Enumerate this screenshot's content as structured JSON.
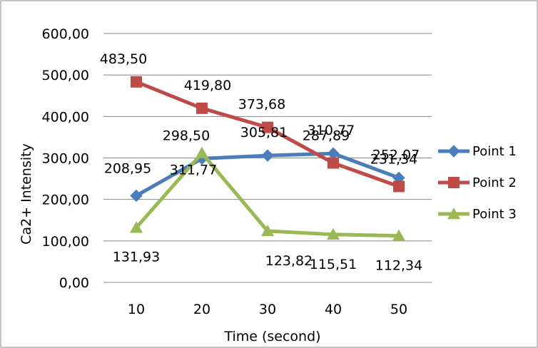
{
  "chart_data": {
    "type": "line",
    "title": "",
    "xlabel": "Time (second)",
    "ylabel": "Ca2+ Intensity",
    "categories": [
      "10",
      "20",
      "30",
      "40",
      "50"
    ],
    "ylim": [
      0,
      600
    ],
    "yticks": [
      "0,00",
      "100,00",
      "200,00",
      "300,00",
      "400,00",
      "500,00",
      "600,00"
    ],
    "grid": true,
    "legend_position": "right",
    "series": [
      {
        "name": "Point 1",
        "color": "#4a7ebb",
        "marker": "diamond",
        "values": [
          208.95,
          298.5,
          305.81,
          310.77,
          252.07
        ],
        "labels": [
          "208,95",
          "298,50",
          "305,81",
          "310,77",
          "252,07"
        ]
      },
      {
        "name": "Point 2",
        "color": "#be4b48",
        "marker": "square",
        "values": [
          483.5,
          419.8,
          373.68,
          287.89,
          231.34
        ],
        "labels": [
          "483,50",
          "419,80",
          "373,68",
          "287,89",
          "231,34"
        ]
      },
      {
        "name": "Point 3",
        "color": "#98b954",
        "marker": "triangle",
        "values": [
          131.93,
          311.77,
          123.82,
          115.51,
          112.34
        ],
        "labels": [
          "131,93",
          "311,77",
          "123,82",
          "115,51",
          "112,34"
        ]
      }
    ]
  }
}
